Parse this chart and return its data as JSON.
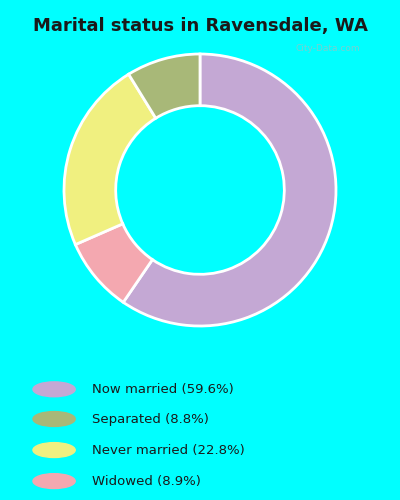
{
  "title": "Marital status in Ravensdale, WA",
  "title_fontsize": 13,
  "background_top": "#00FFFF",
  "background_chart": "#d8ede0",
  "categories": [
    "Now married",
    "Widowed",
    "Never married",
    "Separated"
  ],
  "values": [
    59.6,
    8.9,
    22.8,
    8.8
  ],
  "colors": [
    "#c4a8d4",
    "#f4a8b0",
    "#f0f080",
    "#a8b878"
  ],
  "legend_labels": [
    "Now married (59.6%)",
    "Separated (8.8%)",
    "Never married (22.8%)",
    "Widowed (8.9%)"
  ],
  "legend_colors": [
    "#c4a8d4",
    "#a8b878",
    "#f0f080",
    "#f4a8b0"
  ],
  "watermark": "City-Data.com",
  "donut_width": 0.38,
  "start_angle": 90
}
